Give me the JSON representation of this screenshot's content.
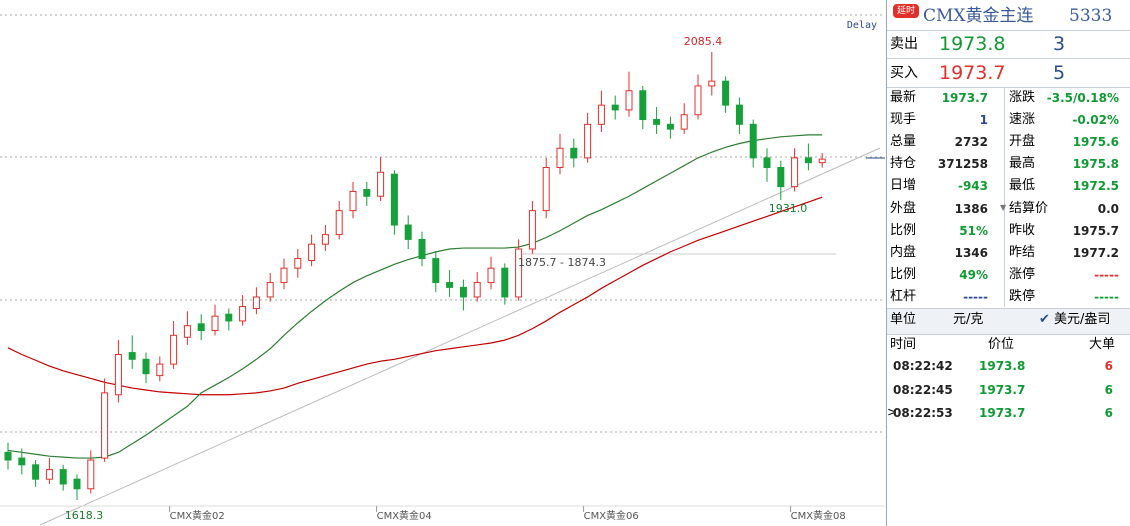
{
  "chart_data": {
    "type": "candlestick",
    "delay_label": "Delay",
    "categories": [
      null,
      null,
      null,
      null,
      null,
      null,
      null,
      null,
      null,
      null,
      null,
      null,
      "CMX黄金02",
      null,
      null,
      null,
      null,
      null,
      null,
      null,
      null,
      null,
      null,
      null,
      null,
      null,
      null,
      "CMX黄金04",
      null,
      null,
      null,
      null,
      null,
      null,
      null,
      null,
      null,
      null,
      null,
      null,
      null,
      null,
      "CMX黄金06",
      null,
      null,
      null,
      null,
      null,
      null,
      null,
      null,
      null,
      null,
      null,
      null,
      null,
      null,
      "CMX黄金08",
      null,
      null
    ],
    "open": [
      1668,
      1662,
      1655,
      1640,
      1650,
      1640,
      1630,
      1662,
      1728,
      1772,
      1765,
      1748,
      1760,
      1788,
      1802,
      1795,
      1812,
      1805,
      1818,
      1830,
      1845,
      1860,
      1868,
      1885,
      1895,
      1920,
      1942,
      1935,
      1958,
      1905,
      1890,
      1870,
      1845,
      1840,
      1830,
      1845,
      1860,
      1830,
      1880,
      1920,
      1965,
      1985,
      1975,
      2010,
      2030,
      2025,
      2045,
      2015,
      2010,
      2005,
      2020,
      2050,
      2055,
      2030,
      2010,
      1975,
      1965,
      1945,
      1975,
      1970
    ],
    "high": [
      1678,
      1672,
      1660,
      1662,
      1655,
      1645,
      1670,
      1745,
      1785,
      1790,
      1772,
      1768,
      1805,
      1815,
      1812,
      1822,
      1818,
      1832,
      1840,
      1855,
      1870,
      1880,
      1895,
      1905,
      1930,
      1950,
      1950,
      1976,
      1962,
      1915,
      1898,
      1878,
      1858,
      1848,
      1856,
      1872,
      1865,
      1890,
      1930,
      1975,
      2000,
      1995,
      2022,
      2045,
      2040,
      2065,
      2050,
      2028,
      2018,
      2032,
      2062,
      2085.4,
      2060,
      2038,
      2015,
      1985,
      1972,
      1985,
      1990,
      1980
    ],
    "low": [
      1650,
      1645,
      1632,
      1635,
      1628,
      1618.3,
      1625,
      1658,
      1720,
      1755,
      1740,
      1742,
      1755,
      1780,
      1785,
      1790,
      1795,
      1800,
      1812,
      1825,
      1838,
      1850,
      1862,
      1878,
      1890,
      1912,
      1925,
      1930,
      1895,
      1880,
      1862,
      1835,
      1830,
      1816,
      1825,
      1838,
      1822,
      1826,
      1875,
      1912,
      1958,
      1965,
      1970,
      2002,
      2015,
      2018,
      2005,
      2000,
      1995,
      2000,
      2015,
      2040,
      2022,
      2000,
      1965,
      1950,
      1931,
      1940,
      1962,
      1965
    ],
    "close": [
      1660,
      1655,
      1640,
      1650,
      1635,
      1630,
      1660,
      1730,
      1770,
      1765,
      1750,
      1760,
      1790,
      1800,
      1795,
      1810,
      1805,
      1820,
      1830,
      1845,
      1860,
      1870,
      1885,
      1895,
      1920,
      1940,
      1935,
      1960,
      1905,
      1890,
      1870,
      1845,
      1840,
      1830,
      1845,
      1860,
      1830,
      1880,
      1920,
      1965,
      1985,
      1975,
      2010,
      2030,
      2025,
      2045,
      2015,
      2010,
      2005,
      2020,
      2050,
      2055,
      2030,
      2010,
      1975,
      1965,
      1945,
      1975,
      1970,
      1973.7
    ],
    "up_color": "#e0302c",
    "down_color": "#16a03a",
    "lines": [
      {
        "color": "#c00000",
        "values": [
          1777,
          1770,
          1764,
          1758,
          1753,
          1749,
          1745,
          1741,
          1738,
          1735,
          1733,
          1731,
          1730,
          1729,
          1728,
          1728,
          1728,
          1729,
          1730,
          1732,
          1735,
          1740,
          1744,
          1748,
          1752,
          1756,
          1760,
          1763,
          1765,
          1768,
          1771,
          1774,
          1776,
          1778,
          1780,
          1782,
          1785,
          1790,
          1797,
          1805,
          1814,
          1822,
          1830,
          1839,
          1847,
          1855,
          1863,
          1870,
          1877,
          1883,
          1889,
          1894,
          1899,
          1904,
          1909,
          1914,
          1919,
          1924,
          1929,
          1934
        ]
      },
      {
        "color": "#2e7d32",
        "values": [
          1670,
          1668,
          1666,
          1664,
          1663,
          1662,
          1662,
          1663,
          1668,
          1677,
          1686,
          1696,
          1706,
          1716,
          1730,
          1738,
          1746,
          1755,
          1765,
          1776,
          1790,
          1803,
          1815,
          1826,
          1836,
          1845,
          1852,
          1858,
          1864,
          1869,
          1873,
          1877,
          1880,
          1881,
          1881,
          1881,
          1881,
          1882,
          1886,
          1892,
          1899,
          1907,
          1915,
          1921,
          1928,
          1935,
          1943,
          1951,
          1959,
          1967,
          1975,
          1981,
          1986,
          1990,
          1993,
          1995,
          1997,
          1998,
          1999,
          1999
        ]
      }
    ],
    "annotations": [
      "2085.4",
      "1931.0",
      "1618.3",
      "1875.7 - 1874.3"
    ]
  },
  "panel": {
    "badge": "延时",
    "title": "CMX黄金主连",
    "code": "5333",
    "quotes": [
      [
        "卖出",
        "1973.8",
        "3"
      ],
      [
        "买入",
        "1973.7",
        "5"
      ]
    ],
    "stats": [
      [
        "最新",
        "1973.7",
        "涨跌",
        "-3.5/0.18%"
      ],
      [
        "现手",
        "1",
        "速涨",
        "-0.02%"
      ],
      [
        "总量",
        "2732",
        "开盘",
        "1975.6"
      ],
      [
        "持仓",
        "371258",
        "最高",
        "1975.8"
      ],
      [
        "日增",
        "-943",
        "最低",
        "1972.5"
      ],
      [
        "外盘",
        "1386",
        "结算价",
        "0.0"
      ],
      [
        "比例",
        "51%",
        "昨收",
        "1975.7"
      ],
      [
        "内盘",
        "1346",
        "昨结",
        "1977.2"
      ],
      [
        "比例",
        "49%",
        "涨停",
        "-----"
      ],
      [
        "杠杆",
        "-----",
        "跌停",
        "-----"
      ]
    ],
    "unit": [
      "单位",
      "元/克",
      "美元/盎司"
    ],
    "ticks_header": [
      "时间",
      "价位",
      "大单"
    ],
    "ticks": [
      [
        "08:22:42",
        "1973.8",
        "6"
      ],
      [
        "08:22:45",
        "1973.7",
        "6"
      ],
      [
        "08:22:53",
        "1973.7",
        "6"
      ]
    ]
  }
}
